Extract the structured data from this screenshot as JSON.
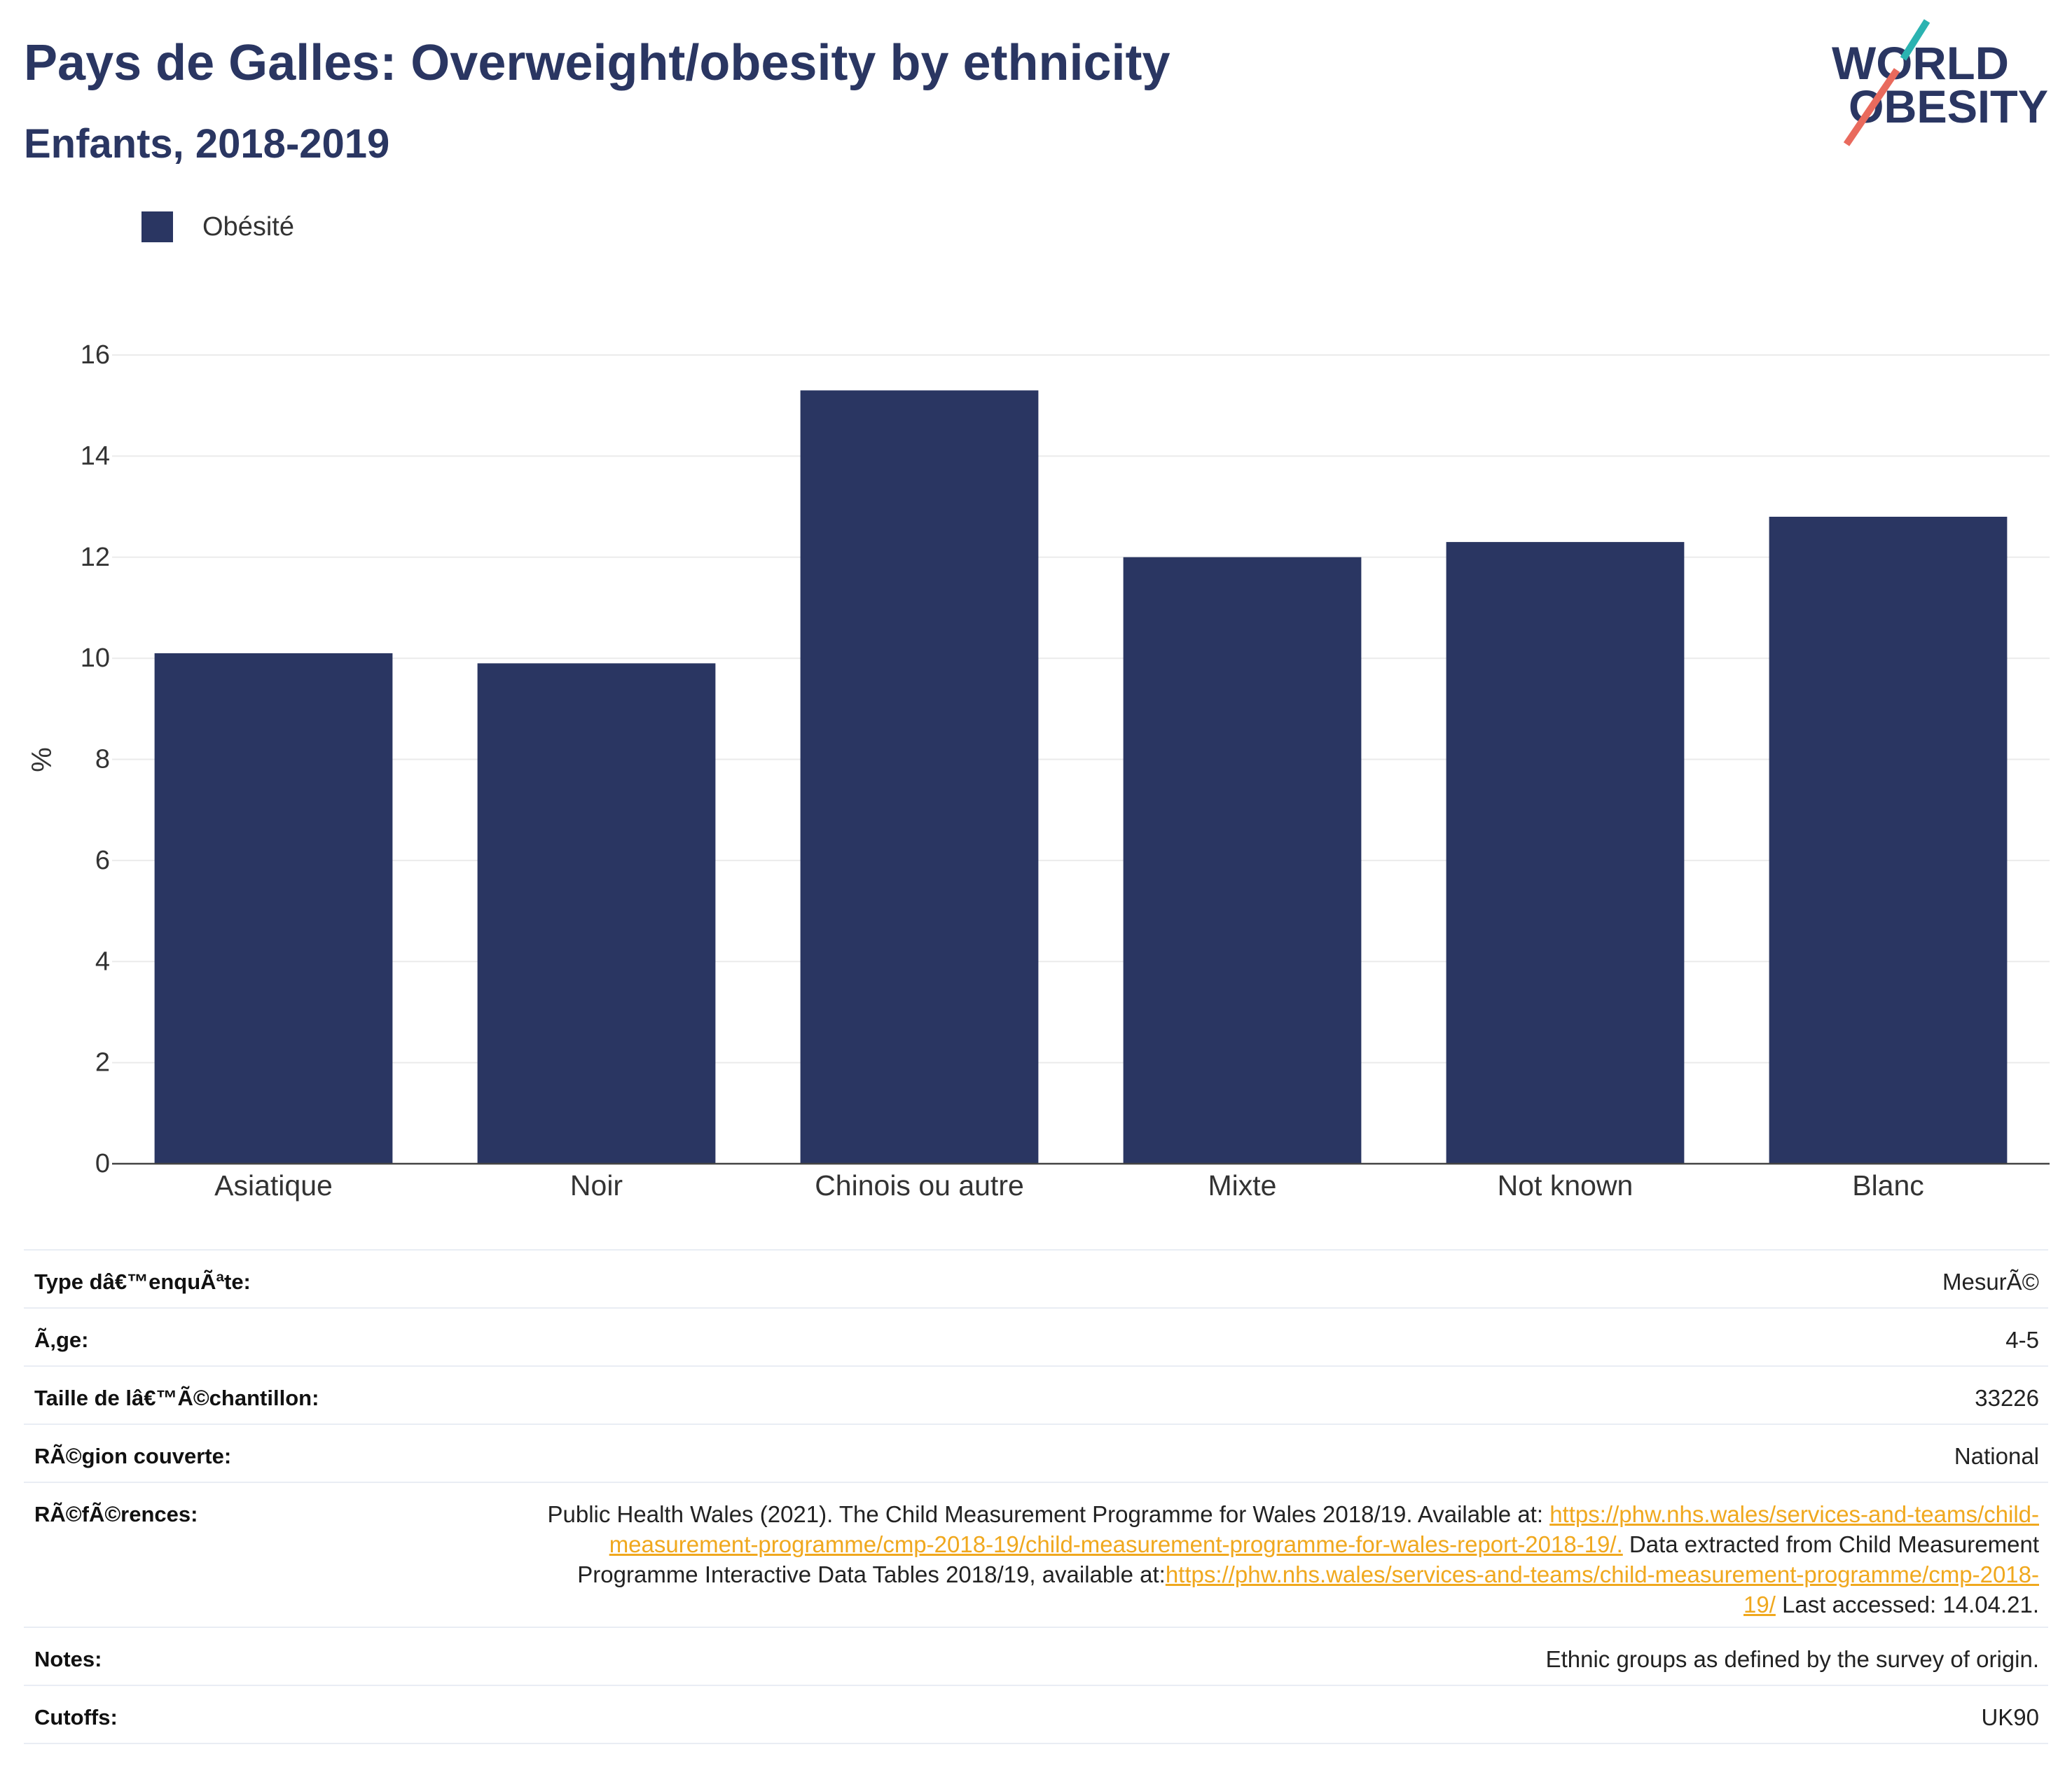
{
  "colors": {
    "navy": "#2a3662",
    "logo_teal": "#2bb3b1",
    "logo_coral": "#e96a5d",
    "link": "#f0a81e",
    "grid": "#ebebeb",
    "rule": "#e9edf4"
  },
  "logo": {
    "line1": "WORLD",
    "line2": "OBESITY"
  },
  "chart_data": {
    "type": "bar",
    "title": "Pays de Galles: Overweight/obesity by ethnicity",
    "subtitle": "Enfants, 2018-2019",
    "categories": [
      "Asiatique",
      "Noir",
      "Chinois ou autre",
      "Mixte",
      "Not known",
      "Blanc"
    ],
    "series": [
      {
        "name": "Obésité",
        "color": "#2a3662",
        "values": [
          10.1,
          9.9,
          15.3,
          12.0,
          12.3,
          12.8
        ]
      }
    ],
    "ylabel": "%",
    "ylim": [
      0,
      16
    ],
    "yticks": [
      0,
      2,
      4,
      6,
      8,
      10,
      12,
      14,
      16
    ],
    "grid": true,
    "legend_position": "top-left"
  },
  "details": [
    {
      "label": "Type dâ€™enquÃªte:",
      "value": "MesurÃ©"
    },
    {
      "label": "Ã‚ge:",
      "value": "4-5"
    },
    {
      "label": "Taille de lâ€™Ã©chantillon:",
      "value": "33226"
    },
    {
      "label": "RÃ©gion couverte:",
      "value": "National"
    },
    {
      "label": "RÃ©fÃ©rences:",
      "segments": [
        {
          "text": "Public Health Wales (2021). The Child Measurement Programme for Wales 2018/19. Available at: ",
          "link": false
        },
        {
          "text": "https://phw.nhs.wales/services-and-teams/child-measurement-programme/cmp-2018-19/child-measurement-programme-for-wales-report-2018-19/.",
          "link": true
        },
        {
          "text": " Data extracted from Child Measurement Programme Interactive Data Tables 2018/19, available at:",
          "link": false
        },
        {
          "text": "https://phw.nhs.wales/services-and-teams/child-measurement-programme/cmp-2018-19/",
          "link": true
        },
        {
          "text": " Last accessed: 14.04.21.",
          "link": false
        }
      ]
    },
    {
      "label": "Notes:",
      "value": "Ethnic groups as defined by the survey of origin."
    },
    {
      "label": "Cutoffs:",
      "value": "UK90"
    }
  ]
}
